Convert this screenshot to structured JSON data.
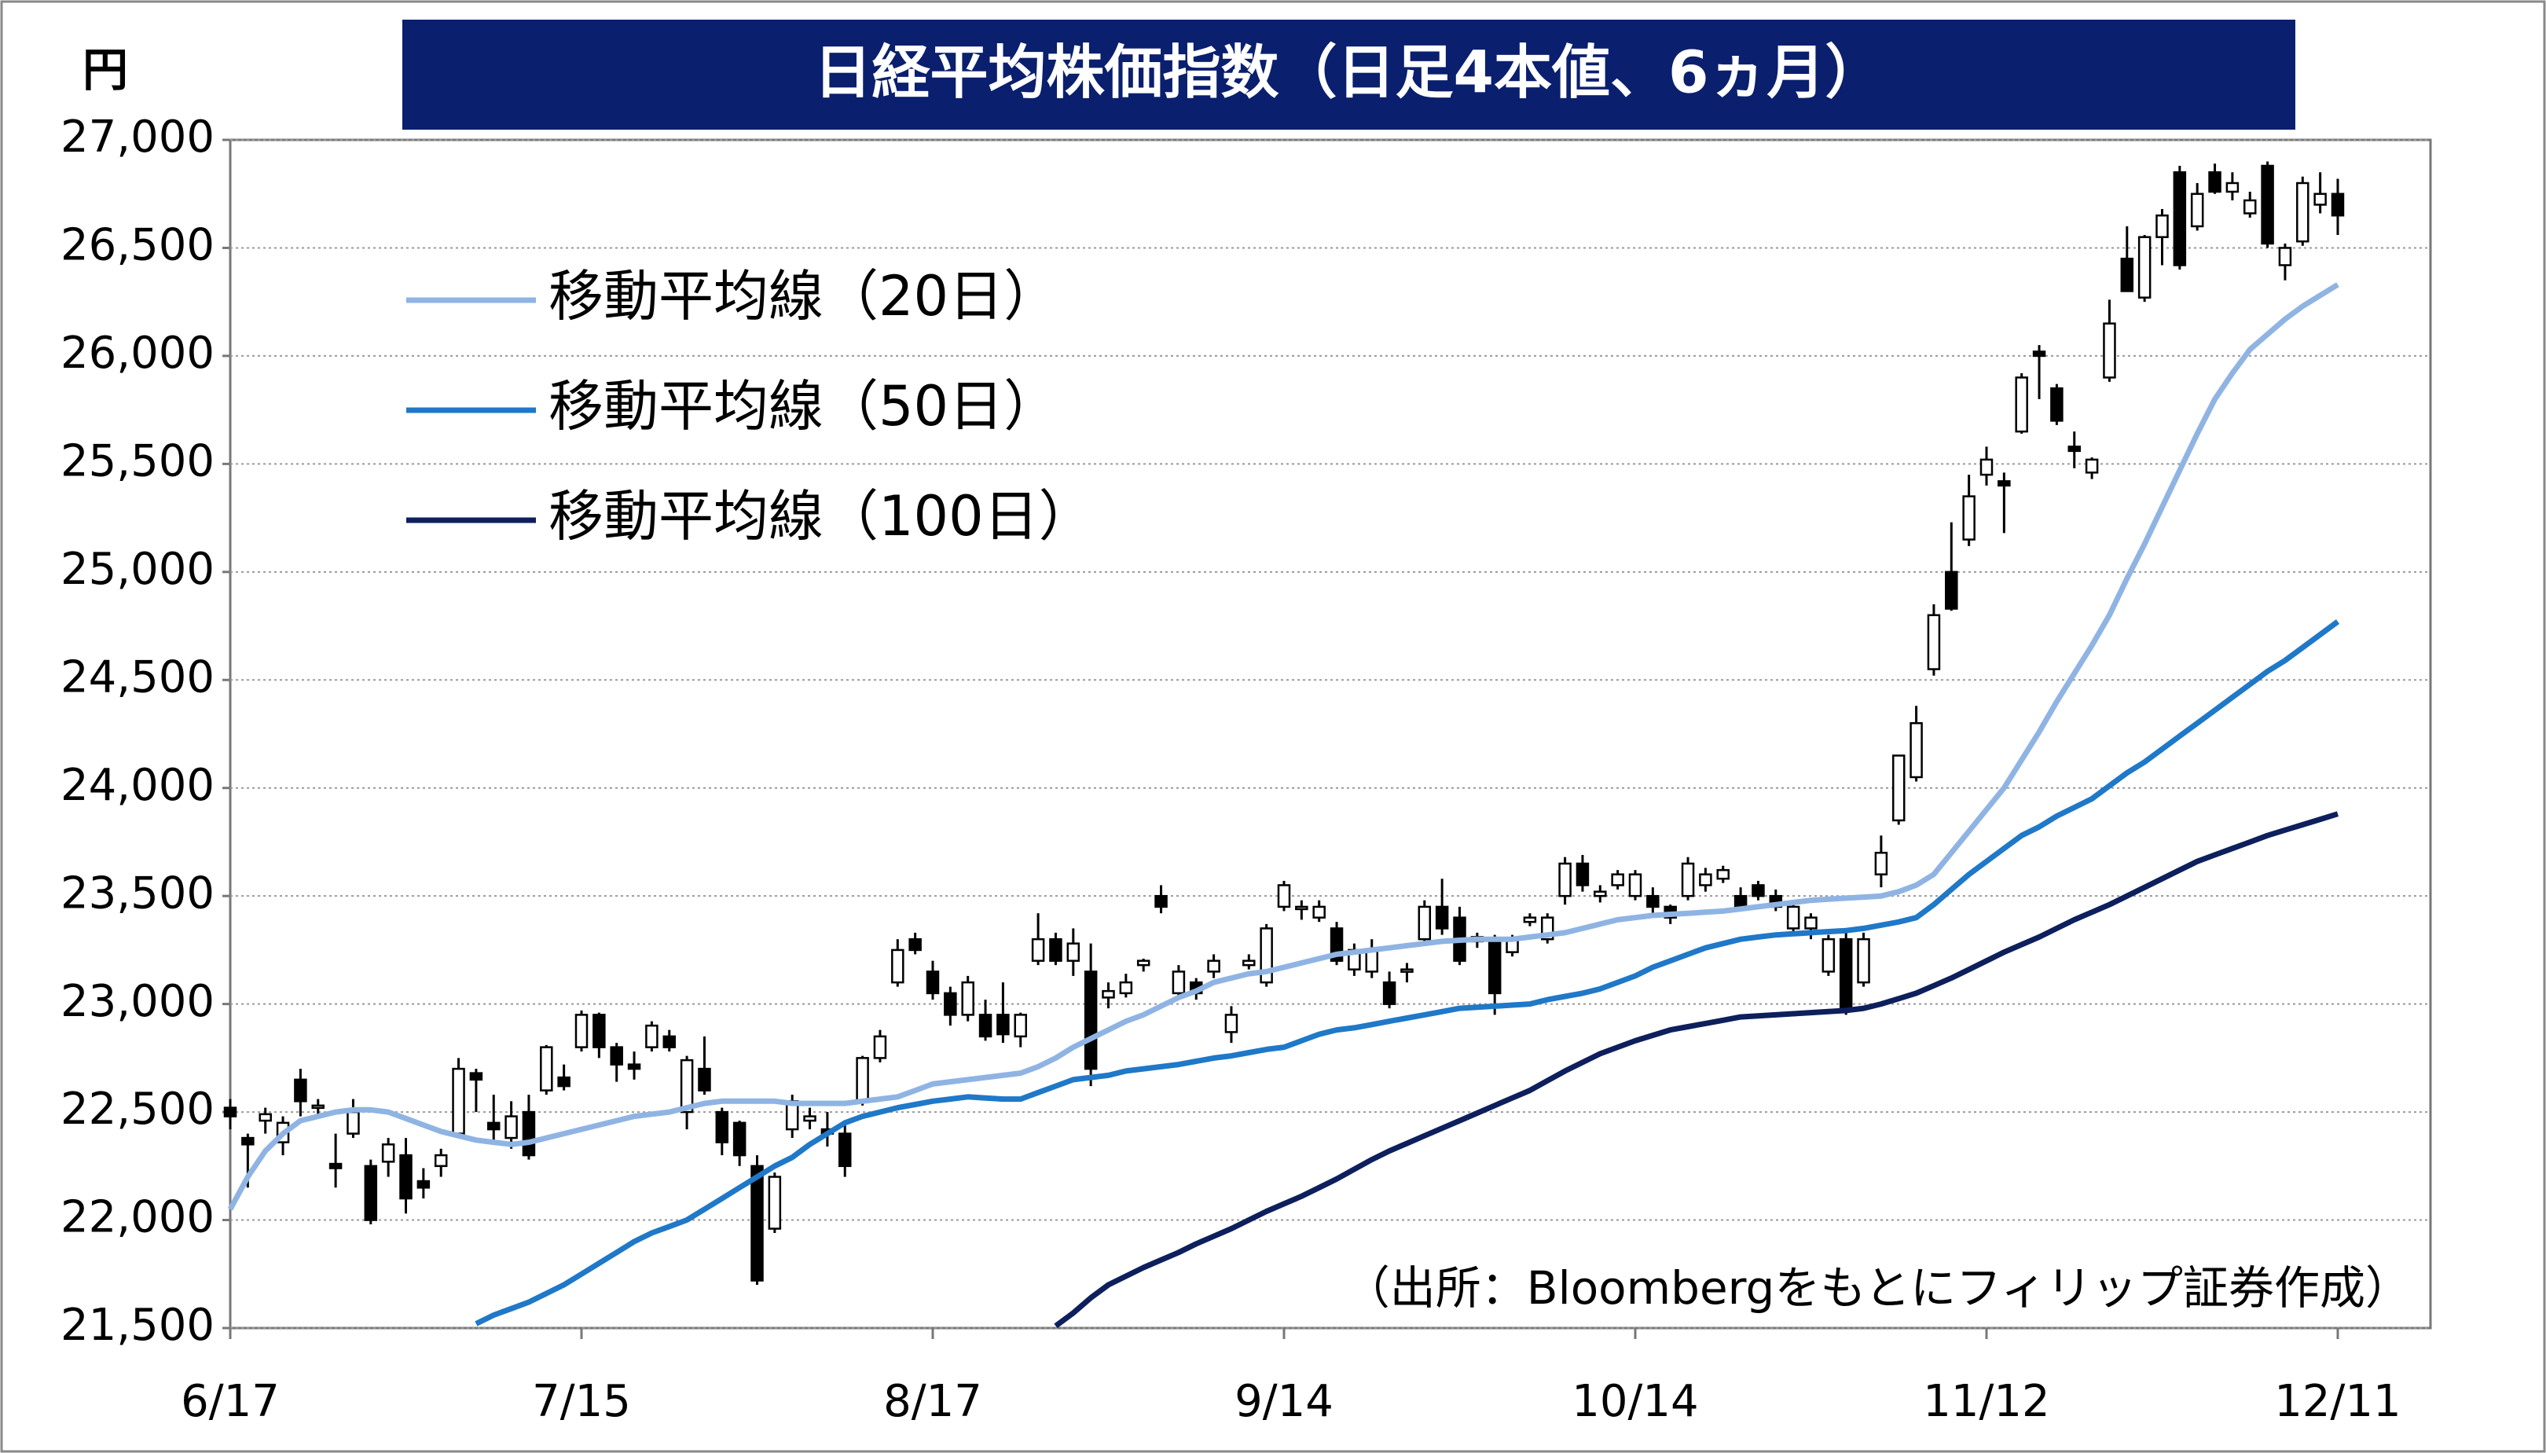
{
  "chart_data": {
    "type": "candlestick",
    "title": "日経平均株価指数（日足4本値、6ヵ月）",
    "y_unit": "円",
    "source": "（出所：Bloombergをもとにフィリップ証券作成）",
    "categories": [
      "6/17",
      null,
      null,
      null,
      null,
      null,
      null,
      null,
      null,
      null,
      null,
      null,
      null,
      null,
      null,
      null,
      null,
      null,
      null,
      null,
      "7/15",
      null,
      null,
      null,
      null,
      null,
      null,
      null,
      null,
      null,
      null,
      null,
      null,
      null,
      null,
      null,
      null,
      null,
      null,
      null,
      "8/17",
      null,
      null,
      null,
      null,
      null,
      null,
      null,
      null,
      null,
      null,
      null,
      null,
      null,
      null,
      null,
      null,
      null,
      null,
      null,
      "9/14",
      null,
      null,
      null,
      null,
      null,
      null,
      null,
      null,
      null,
      null,
      null,
      null,
      null,
      null,
      null,
      null,
      null,
      null,
      null,
      "10/14",
      null,
      null,
      null,
      null,
      null,
      null,
      null,
      null,
      null,
      null,
      null,
      null,
      null,
      null,
      null,
      null,
      null,
      null,
      null,
      "11/12",
      null,
      null,
      null,
      null,
      null,
      null,
      null,
      null,
      null,
      null,
      null,
      null,
      null,
      null,
      null,
      null,
      null,
      null,
      null,
      "12/11"
    ],
    "open": [
      22520,
      22380,
      22460,
      22360,
      22650,
      22520,
      22260,
      22400,
      22250,
      22270,
      22300,
      22180,
      22250,
      22400,
      22680,
      22450,
      22380,
      22500,
      22600,
      22660,
      22800,
      22950,
      22800,
      22720,
      22800,
      22850,
      22500,
      22700,
      22500,
      22450,
      22250,
      21960,
      22420,
      22460,
      22420,
      22400,
      22550,
      22750,
      23100,
      23300,
      23150,
      23050,
      22950,
      22950,
      22950,
      22850,
      23200,
      23300,
      23200,
      23150,
      23030,
      23050,
      23180,
      23500,
      23050,
      23100,
      23150,
      22870,
      23180,
      23100,
      23450,
      23440,
      23400,
      23350,
      23160,
      23150,
      23100,
      23150,
      23300,
      23450,
      23400,
      23290,
      23300,
      23240,
      23380,
      23300,
      23500,
      23650,
      23500,
      23550,
      23500,
      23500,
      23450,
      23500,
      23550,
      23580,
      23500,
      23550,
      23500,
      23350,
      23350,
      23150,
      23300,
      23100,
      23600,
      23850,
      24050,
      24550,
      25000,
      25150,
      25450,
      25420,
      25650,
      26020,
      25850,
      25580,
      25460,
      25900,
      26450,
      26270,
      26550,
      26850,
      26600,
      26850,
      26760,
      26660,
      26880,
      26420,
      26530,
      26700,
      26750
    ],
    "high": [
      22560,
      22400,
      22520,
      22480,
      22700,
      22560,
      22400,
      22560,
      22280,
      22380,
      22380,
      22240,
      22330,
      22750,
      22700,
      22580,
      22550,
      22580,
      22810,
      22720,
      22970,
      22960,
      22820,
      22780,
      22920,
      22880,
      22760,
      22850,
      22520,
      22460,
      22300,
      22220,
      22580,
      22520,
      22500,
      22450,
      22760,
      22880,
      23300,
      23330,
      23200,
      23080,
      23130,
      23020,
      23100,
      22960,
      23420,
      23330,
      23350,
      23280,
      23100,
      23140,
      23210,
      23550,
      23180,
      23120,
      23230,
      22990,
      23230,
      23370,
      23570,
      23480,
      23480,
      23380,
      23280,
      23300,
      23150,
      23190,
      23480,
      23580,
      23450,
      23330,
      23320,
      23320,
      23420,
      23420,
      23680,
      23690,
      23550,
      23620,
      23620,
      23540,
      23460,
      23680,
      23630,
      23640,
      23540,
      23570,
      23530,
      23480,
      23420,
      23320,
      23350,
      23330,
      23780,
      24150,
      24380,
      24850,
      25230,
      25450,
      25580,
      25460,
      25920,
      26050,
      25870,
      25650,
      25530,
      26260,
      26600,
      26560,
      26680,
      26880,
      26800,
      26890,
      26850,
      26760,
      26900,
      26520,
      26830,
      26850,
      26820
    ],
    "low": [
      22420,
      22150,
      22400,
      22300,
      22480,
      22470,
      22150,
      22380,
      21980,
      22200,
      22030,
      22100,
      22200,
      22380,
      22500,
      22370,
      22330,
      22280,
      22580,
      22600,
      22780,
      22750,
      22640,
      22650,
      22780,
      22780,
      22420,
      22580,
      22300,
      22250,
      21700,
      21940,
      22380,
      22420,
      22340,
      22200,
      22530,
      22730,
      23080,
      23230,
      23020,
      22900,
      22920,
      22830,
      22820,
      22800,
      23180,
      23180,
      23130,
      22620,
      22980,
      23030,
      23150,
      23420,
      23030,
      23020,
      23120,
      22820,
      23160,
      23080,
      23430,
      23390,
      23380,
      23180,
      23130,
      23120,
      22980,
      23100,
      23280,
      23320,
      23180,
      23260,
      22950,
      23220,
      23360,
      23280,
      23460,
      23520,
      23470,
      23530,
      23480,
      23420,
      23370,
      23480,
      23520,
      23560,
      23430,
      23480,
      23430,
      23330,
      23300,
      23130,
      22950,
      23080,
      23540,
      23830,
      24030,
      24520,
      24820,
      25120,
      25400,
      25180,
      25640,
      25800,
      25680,
      25480,
      25430,
      25880,
      26300,
      26250,
      26420,
      26400,
      26580,
      26750,
      26720,
      26640,
      26500,
      26350,
      26510,
      26660,
      26560
    ],
    "close": [
      22480,
      22350,
      22490,
      22450,
      22550,
      22530,
      22240,
      22500,
      22000,
      22350,
      22100,
      22150,
      22300,
      22700,
      22650,
      22420,
      22480,
      22300,
      22800,
      22620,
      22950,
      22800,
      22720,
      22700,
      22900,
      22800,
      22740,
      22600,
      22360,
      22300,
      21720,
      22200,
      22550,
      22480,
      22400,
      22250,
      22750,
      22850,
      23250,
      23250,
      23050,
      22950,
      23100,
      22850,
      22860,
      22950,
      23300,
      23200,
      23280,
      22700,
      23060,
      23100,
      23200,
      23450,
      23150,
      23050,
      23200,
      22950,
      23200,
      23350,
      23550,
      23450,
      23450,
      23200,
      23250,
      23250,
      23000,
      23160,
      23450,
      23350,
      23200,
      23310,
      23050,
      23300,
      23400,
      23400,
      23650,
      23550,
      23520,
      23600,
      23600,
      23450,
      23400,
      23650,
      23600,
      23620,
      23450,
      23500,
      23450,
      23450,
      23400,
      23300,
      22970,
      23300,
      23700,
      24150,
      24300,
      24800,
      24830,
      25350,
      25520,
      25400,
      25900,
      26000,
      25700,
      25560,
      25520,
      26150,
      26300,
      26550,
      26650,
      26420,
      26750,
      26760,
      26800,
      26720,
      26520,
      26500,
      26800,
      26750,
      26650
    ],
    "series": [
      {
        "name": "移動平均線（20日）",
        "color": "#8fb4e3",
        "values": [
          22050,
          22200,
          22320,
          22400,
          22460,
          22480,
          22500,
          22510,
          22510,
          22500,
          22470,
          22440,
          22410,
          22390,
          22370,
          22360,
          22350,
          22360,
          22380,
          22400,
          22420,
          22440,
          22460,
          22480,
          22490,
          22500,
          22520,
          22540,
          22550,
          22550,
          22550,
          22550,
          22540,
          22540,
          22540,
          22540,
          22550,
          22560,
          22570,
          22600,
          22630,
          22640,
          22650,
          22660,
          22670,
          22680,
          22710,
          22750,
          22800,
          22840,
          22880,
          22920,
          22950,
          22990,
          23030,
          23060,
          23100,
          23120,
          23140,
          23150,
          23170,
          23190,
          23210,
          23230,
          23240,
          23250,
          23260,
          23270,
          23280,
          23290,
          23295,
          23300,
          23300,
          23300,
          23310,
          23320,
          23330,
          23350,
          23370,
          23390,
          23400,
          23410,
          23415,
          23420,
          23425,
          23430,
          23440,
          23450,
          23460,
          23470,
          23480,
          23485,
          23490,
          23495,
          23500,
          23520,
          23550,
          23600,
          23700,
          23800,
          23900,
          24000,
          24130,
          24260,
          24400,
          24530,
          24660,
          24800,
          24970,
          25130,
          25300,
          25470,
          25640,
          25800,
          25920,
          26030,
          26100,
          26170,
          26230,
          26280,
          26330
        ]
      },
      {
        "name": "移動平均線（50日）",
        "color": "#1f78c8",
        "values": [
          null,
          null,
          null,
          null,
          null,
          null,
          null,
          null,
          null,
          null,
          null,
          null,
          null,
          null,
          21520,
          21560,
          21590,
          21620,
          21660,
          21700,
          21750,
          21800,
          21850,
          21900,
          21940,
          21970,
          22000,
          22050,
          22100,
          22150,
          22200,
          22250,
          22290,
          22350,
          22400,
          22450,
          22480,
          22500,
          22520,
          22535,
          22550,
          22560,
          22570,
          22565,
          22560,
          22560,
          22590,
          22620,
          22650,
          22660,
          22670,
          22690,
          22700,
          22710,
          22720,
          22735,
          22750,
          22760,
          22775,
          22790,
          22800,
          22830,
          22860,
          22880,
          22890,
          22905,
          22920,
          22935,
          22950,
          22965,
          22980,
          22985,
          22990,
          22995,
          23000,
          23020,
          23035,
          23050,
          23070,
          23100,
          23130,
          23170,
          23200,
          23230,
          23260,
          23280,
          23300,
          23310,
          23320,
          23325,
          23330,
          23335,
          23340,
          23350,
          23365,
          23380,
          23400,
          23460,
          23530,
          23600,
          23660,
          23720,
          23780,
          23820,
          23870,
          23910,
          23950,
          24010,
          24070,
          24120,
          24180,
          24240,
          24300,
          24360,
          24420,
          24480,
          24540,
          24590,
          24650,
          24710,
          24770
        ]
      },
      {
        "name": "移動平均線（100日）",
        "color": "#0d1f5c",
        "values": [
          null,
          null,
          null,
          null,
          null,
          null,
          null,
          null,
          null,
          null,
          null,
          null,
          null,
          null,
          null,
          null,
          null,
          null,
          null,
          null,
          null,
          null,
          null,
          null,
          null,
          null,
          null,
          null,
          null,
          null,
          null,
          null,
          null,
          null,
          null,
          null,
          null,
          null,
          null,
          null,
          null,
          null,
          null,
          null,
          null,
          null,
          null,
          21510,
          21570,
          21640,
          21700,
          21740,
          21780,
          21815,
          21850,
          21890,
          21925,
          21960,
          22000,
          22040,
          22075,
          22110,
          22150,
          22190,
          22235,
          22280,
          22320,
          22355,
          22390,
          22425,
          22460,
          22495,
          22530,
          22565,
          22600,
          22645,
          22690,
          22730,
          22770,
          22800,
          22830,
          22855,
          22880,
          22895,
          22910,
          22925,
          22940,
          22945,
          22950,
          22955,
          22960,
          22965,
          22970,
          22980,
          23000,
          23025,
          23050,
          23085,
          23120,
          23160,
          23200,
          23240,
          23275,
          23310,
          23350,
          23390,
          23425,
          23460,
          23500,
          23540,
          23580,
          23620,
          23660,
          23690,
          23720,
          23750,
          23780,
          23805,
          23830,
          23855,
          23880
        ]
      }
    ],
    "ylim": [
      21500,
      27000
    ],
    "yticks": [
      {
        "value": 21500,
        "label": "21,500"
      },
      {
        "value": 22000,
        "label": "22,000"
      },
      {
        "value": 22500,
        "label": "22,500"
      },
      {
        "value": 23000,
        "label": "23,000"
      },
      {
        "value": 23500,
        "label": "23,500"
      },
      {
        "value": 24000,
        "label": "24,000"
      },
      {
        "value": 24500,
        "label": "24,500"
      },
      {
        "value": 25000,
        "label": "25,000"
      },
      {
        "value": 25500,
        "label": "25,500"
      },
      {
        "value": 26000,
        "label": "26,000"
      },
      {
        "value": 26500,
        "label": "26,500"
      },
      {
        "value": 27000,
        "label": "27,000"
      }
    ],
    "grid": true,
    "up_color": "#ffffff",
    "down_color": "#000000",
    "title_bg": "#0a1f6e"
  }
}
